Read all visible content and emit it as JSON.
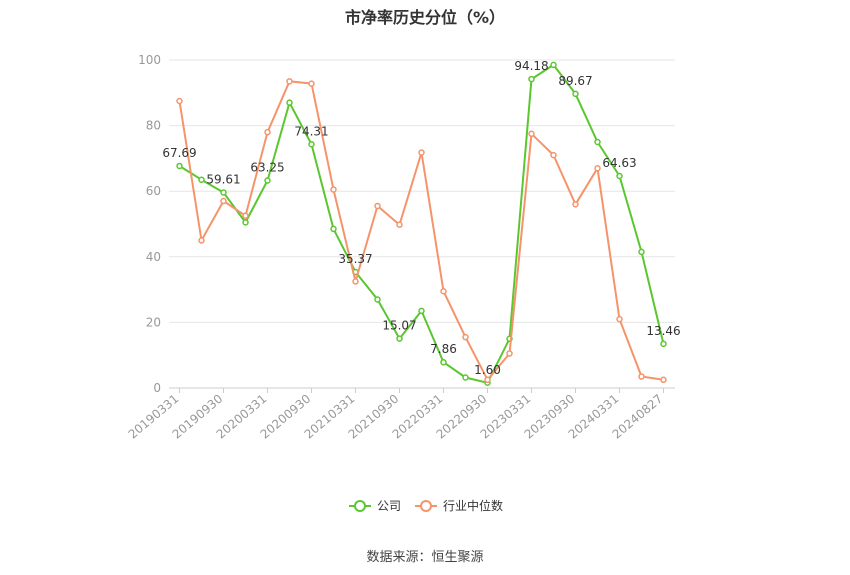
{
  "chart_data": {
    "type": "line",
    "title": "市净率历史分位（%）",
    "source": "数据来源：恒生聚源",
    "xlabel": "",
    "ylabel": "",
    "ylim": [
      0,
      100
    ],
    "yticks": [
      0,
      20,
      40,
      60,
      80,
      100
    ],
    "grid": true,
    "legend_position": "bottom",
    "x": [
      "20190331",
      "20190630",
      "20190930",
      "20191231",
      "20200331",
      "20200630",
      "20200930",
      "20201231",
      "20210331",
      "20210630",
      "20210930",
      "20211231",
      "20220331",
      "20220630",
      "20220930",
      "20221231",
      "20230331",
      "20230630",
      "20230930",
      "20231231",
      "20240331",
      "20240630",
      "20240827"
    ],
    "xtick_labels": [
      "20190331",
      "20190930",
      "20200331",
      "20200930",
      "20210331",
      "20210930",
      "20220331",
      "20220930",
      "20230331",
      "20230930",
      "20240331",
      "20240827"
    ],
    "series": [
      {
        "name": "公司",
        "color": "#5ac72f",
        "values": [
          67.69,
          63.5,
          59.61,
          50.5,
          63.25,
          87.0,
          74.31,
          48.5,
          35.37,
          27.0,
          15.07,
          23.5,
          7.86,
          3.2,
          1.6,
          15.0,
          94.18,
          98.5,
          89.67,
          75.0,
          64.63,
          41.5,
          13.46
        ],
        "labels": {
          "0": "67.69",
          "2": "59.61",
          "4": "63.25",
          "6": "74.31",
          "8": "35.37",
          "10": "15.07",
          "12": "7.86",
          "14": "1.60",
          "16": "94.18",
          "18": "89.67",
          "20": "64.63",
          "22": "13.46"
        }
      },
      {
        "name": "行业中位数",
        "color": "#f5946a",
        "values": [
          87.5,
          45.0,
          57.0,
          52.5,
          78.0,
          93.5,
          92.8,
          60.5,
          32.5,
          55.5,
          49.8,
          71.8,
          29.5,
          15.5,
          2.5,
          10.5,
          77.5,
          71.0,
          56.0,
          67.0,
          21.0,
          3.5,
          2.5
        ]
      }
    ]
  }
}
